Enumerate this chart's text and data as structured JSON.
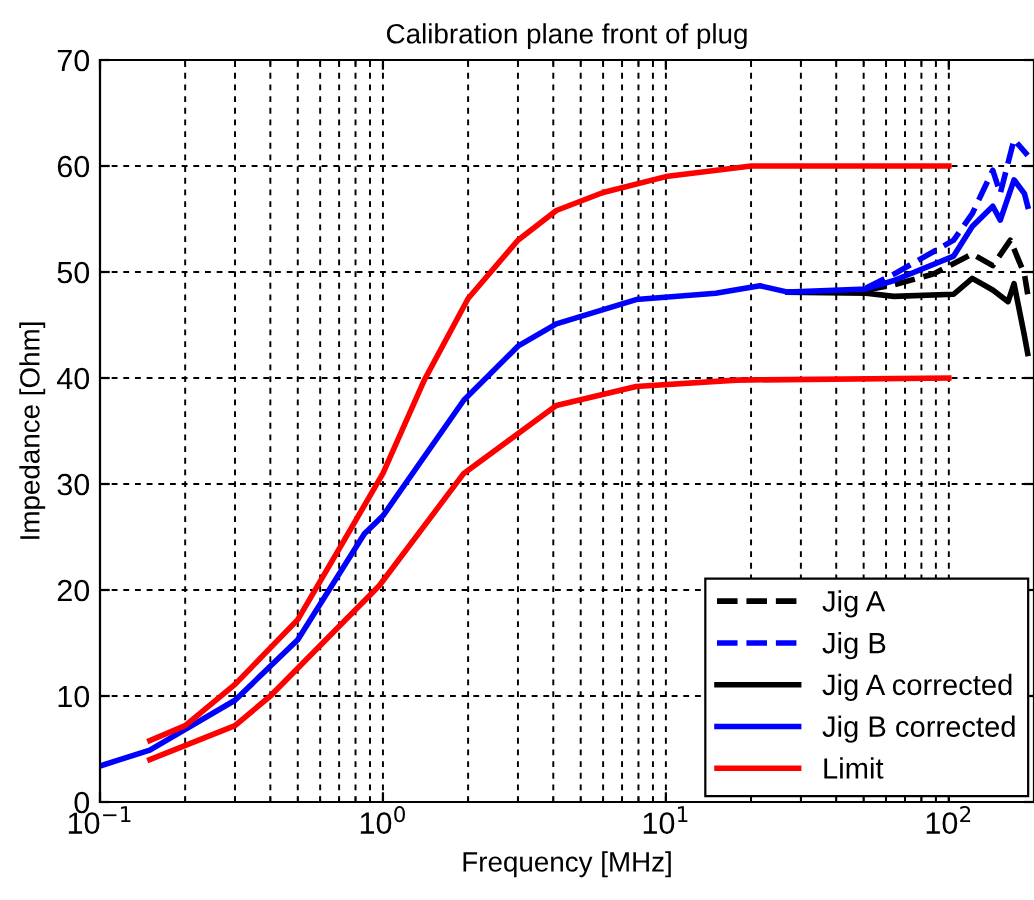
{
  "chart_data": {
    "type": "line",
    "title": "Calibration plane front of plug",
    "xlabel": "Frequency [MHz]",
    "ylabel": "Impedance [Ohm]",
    "log": "x",
    "xlim": [
      0.1,
      200
    ],
    "ylim": [
      0,
      70
    ],
    "xticks": [
      {
        "value": 0.1,
        "label": "10$^{−1}$"
      },
      {
        "value": 1,
        "label": "10$^{0}$"
      },
      {
        "value": 10,
        "label": "10$^{1}$"
      },
      {
        "value": 100,
        "label": "10$^{2}$"
      }
    ],
    "yticks": [
      0,
      10,
      20,
      30,
      40,
      50,
      60,
      70
    ],
    "grid": true,
    "legend": "bottom right",
    "series": [
      {
        "name": "Jig A",
        "color": "#000000",
        "line_style": "dashed",
        "x": [
          51,
          64,
          88,
          121,
          143,
          165,
          185,
          190
        ],
        "values": [
          48.3,
          48.8,
          49.8,
          51.7,
          50.6,
          53,
          49.8,
          47.9
        ]
      },
      {
        "name": "Jig B",
        "color": "#0000ff",
        "line_style": "dashed",
        "x": [
          51,
          64,
          104,
          121,
          143,
          152,
          170,
          190
        ],
        "values": [
          48.5,
          49.8,
          53,
          55.5,
          59.6,
          57.4,
          62.5,
          61
        ]
      },
      {
        "name": "Jig A corrected",
        "color": "#000000",
        "line_style": "solid",
        "x": [
          27,
          51,
          64,
          104,
          121,
          143,
          162,
          170,
          185,
          190
        ],
        "values": [
          48.1,
          48,
          47.7,
          47.9,
          49.4,
          48.3,
          47.2,
          48.9,
          44,
          42.3
        ]
      },
      {
        "name": "Jig B corrected",
        "color": "#0000ff",
        "line_style": "solid",
        "x": [
          0.1,
          0.15,
          0.3,
          0.5,
          0.86,
          1,
          1.93,
          3,
          4.1,
          7.85,
          15,
          21.5,
          27,
          51,
          64,
          104,
          121,
          143,
          152,
          170,
          185,
          190
        ],
        "values": [
          3.4,
          4.9,
          9.6,
          15.3,
          25.3,
          27,
          37.9,
          43,
          45.1,
          47.4,
          48,
          48.7,
          48.1,
          48.4,
          49.2,
          51.5,
          54.3,
          56.2,
          54.9,
          58.7,
          57.4,
          56.2
        ]
      },
      {
        "name": "Limit",
        "color": "#ff0000",
        "line_style": "solid",
        "x": [
          0.15,
          0.2,
          0.3,
          0.5,
          0.73,
          1,
          1.4,
          2,
          3,
          4.1,
          6,
          10,
          20,
          100
        ],
        "values": [
          5.8,
          7.2,
          11.1,
          17.2,
          24.7,
          31,
          39.8,
          47.5,
          53,
          55.8,
          57.5,
          59,
          60,
          60
        ]
      },
      {
        "color": "#ff0000",
        "line_style": "solid",
        "x": [
          0.15,
          0.3,
          0.4,
          0.97,
          1.93,
          4.1,
          7.85,
          17.7,
          100
        ],
        "values": [
          4,
          7.2,
          10,
          20.4,
          31,
          37.4,
          39.2,
          39.8,
          40
        ]
      }
    ]
  }
}
